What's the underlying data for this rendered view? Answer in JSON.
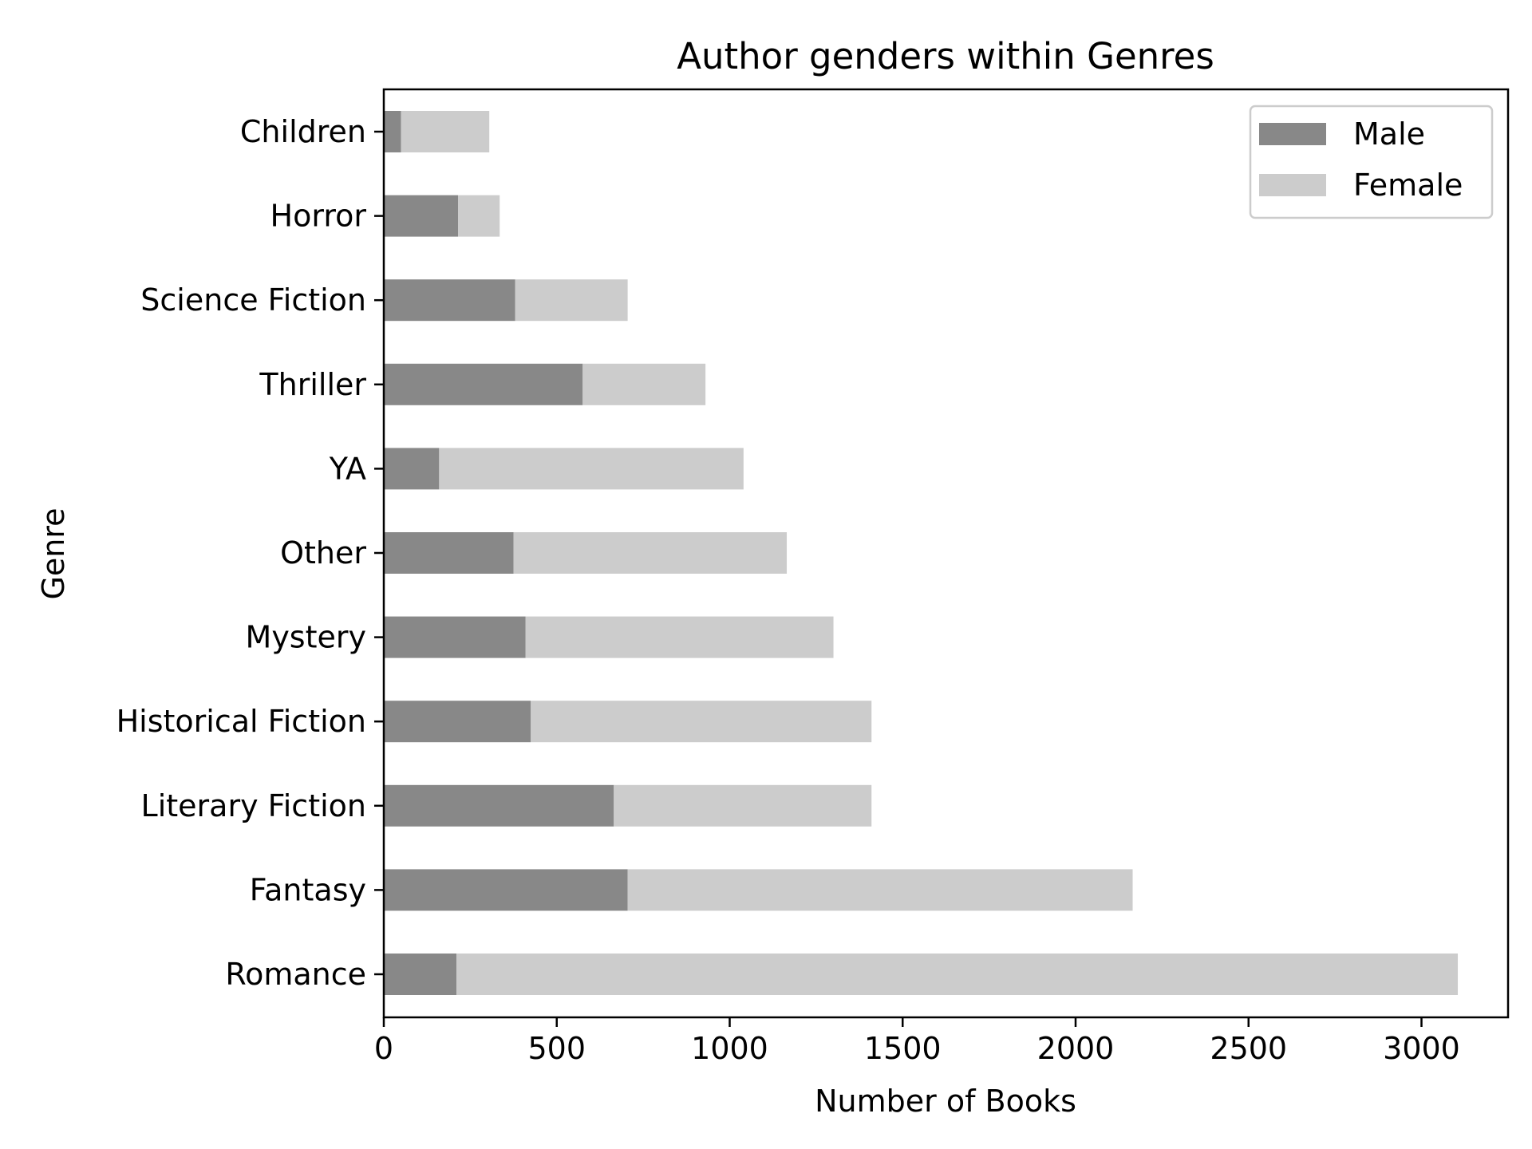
{
  "chart_data": {
    "type": "bar",
    "orientation": "horizontal",
    "stacked": true,
    "title": "Author genders within Genres",
    "xlabel": "Number of Books",
    "ylabel": "Genre",
    "categories": [
      "Romance",
      "Fantasy",
      "Literary Fiction",
      "Historical Fiction",
      "Mystery",
      "Other",
      "YA",
      "Thriller",
      "Science Fiction",
      "Horror",
      "Children"
    ],
    "series": [
      {
        "name": "Male",
        "color": "#888888",
        "values": [
          210,
          705,
          665,
          425,
          410,
          375,
          160,
          575,
          380,
          215,
          50
        ]
      },
      {
        "name": "Female",
        "color": "#cccccc",
        "values": [
          2895,
          1460,
          745,
          985,
          890,
          790,
          880,
          355,
          325,
          120,
          255
        ]
      }
    ],
    "xlim": [
      0,
      3260
    ],
    "xticks": [
      "0",
      "500",
      "1000",
      "1500",
      "2000",
      "2500",
      "3000"
    ],
    "grid": false,
    "legend_position": "top-right"
  }
}
